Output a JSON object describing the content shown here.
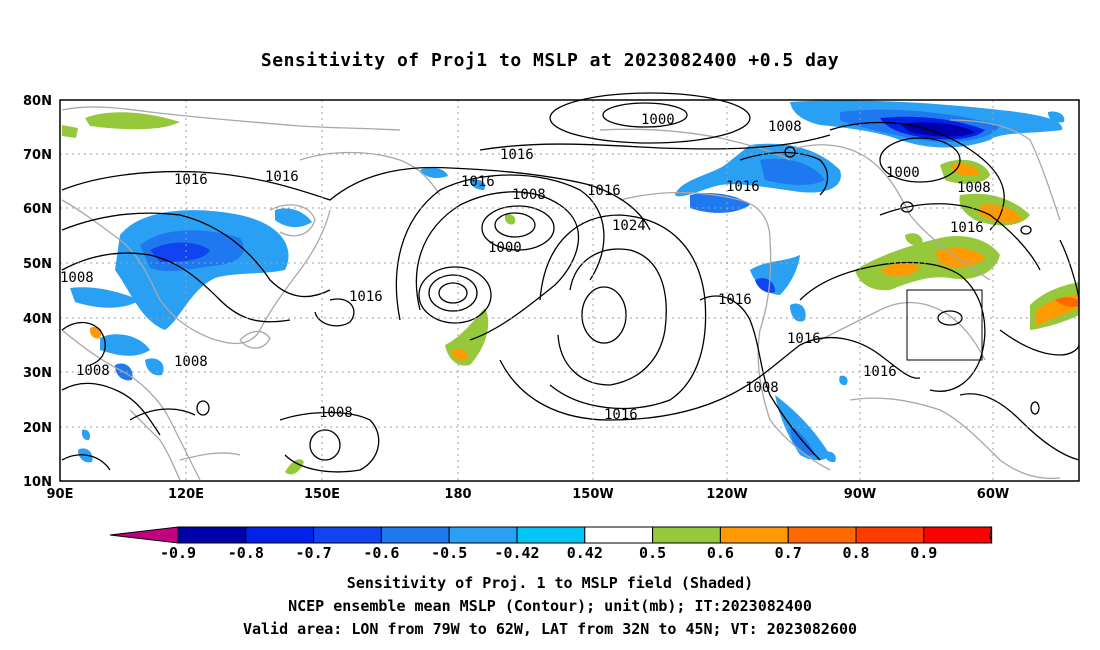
{
  "title": "Sensitivity of Proj1 to MSLP at 2023082400 +0.5 day",
  "lat_labels": [
    "80N",
    "70N",
    "60N",
    "50N",
    "40N",
    "30N",
    "20N",
    "10N"
  ],
  "lon_labels": [
    "90E",
    "120E",
    "150E",
    "180",
    "150W",
    "120W",
    "90W",
    "60W"
  ],
  "contour_labels": [
    "1016",
    "1016",
    "1016",
    "1008",
    "1008",
    "1008",
    "1016",
    "1016",
    "1008",
    "1000",
    "1016",
    "1024",
    "1000",
    "1008",
    "1016",
    "1000",
    "1008",
    "1016",
    "1016",
    "1008",
    "1016",
    "1016",
    "1008",
    "1016"
  ],
  "colorbar": {
    "labels": [
      "-0.9",
      "-0.8",
      "-0.7",
      "-0.6",
      "-0.5",
      "-0.42",
      "0.42",
      "0.5",
      "0.6",
      "0.7",
      "0.8",
      "0.9"
    ],
    "colors": [
      "#c0007f",
      "#0000aa",
      "#0022e8",
      "#1144f0",
      "#1e78f0",
      "#2aa0f5",
      "#00c6f5",
      "#ffffff",
      "#96c83c",
      "#ff9a00",
      "#ff6a00",
      "#ff3c00",
      "#ff0000",
      "#f09ec6"
    ]
  },
  "captions": [
    "Sensitivity of Proj. 1 to MSLP field (Shaded)",
    "NCEP ensemble mean MSLP (Contour); unit(mb); IT:2023082400",
    "Valid area: LON from 79W to 62W, LAT from 32N to 45N; VT: 2023082600"
  ],
  "valid_area": {
    "lon_min": "79W",
    "lon_max": "62W",
    "lat_min": "32N",
    "lat_max": "45N"
  }
}
